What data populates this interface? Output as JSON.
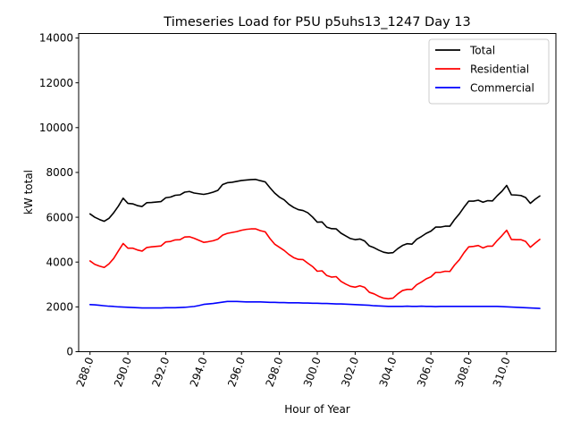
{
  "chart_data": {
    "type": "line",
    "title": "Timeseries Load for P5U p5uhs13_1247  Day 13",
    "xlabel": "Hour of Year",
    "ylabel": "kW total",
    "xlim": [
      287.4,
      312.6
    ],
    "ylim": [
      0,
      14200
    ],
    "xticks": [
      288.0,
      290.0,
      292.0,
      294.0,
      296.0,
      298.0,
      300.0,
      302.0,
      304.0,
      306.0,
      308.0,
      310.0
    ],
    "xtick_labels": [
      "288.0",
      "290.0",
      "292.0",
      "294.0",
      "296.0",
      "298.0",
      "300.0",
      "302.0",
      "304.0",
      "306.0",
      "308.0",
      "310.0"
    ],
    "yticks": [
      0,
      2000,
      4000,
      6000,
      8000,
      10000,
      12000,
      14000
    ],
    "ytick_labels": [
      "0",
      "2000",
      "4000",
      "6000",
      "8000",
      "10000",
      "12000",
      "14000"
    ],
    "legend_position": "top-right",
    "x": [
      288.0,
      288.25,
      288.5,
      288.75,
      289.0,
      289.25,
      289.5,
      289.75,
      290.0,
      290.25,
      290.5,
      290.75,
      291.0,
      291.25,
      291.5,
      291.75,
      292.0,
      292.25,
      292.5,
      292.75,
      293.0,
      293.25,
      293.5,
      293.75,
      294.0,
      294.25,
      294.5,
      294.75,
      295.0,
      295.25,
      295.5,
      295.75,
      296.0,
      296.25,
      296.5,
      296.75,
      297.0,
      297.25,
      297.5,
      297.75,
      298.0,
      298.25,
      298.5,
      298.75,
      299.0,
      299.25,
      299.5,
      299.75,
      300.0,
      300.25,
      300.5,
      300.75,
      301.0,
      301.25,
      301.5,
      301.75,
      302.0,
      302.25,
      302.5,
      302.75,
      303.0,
      303.25,
      303.5,
      303.75,
      304.0,
      304.25,
      304.5,
      304.75,
      305.0,
      305.25,
      305.5,
      305.75,
      306.0,
      306.25,
      306.5,
      306.75,
      307.0,
      307.25,
      307.5,
      307.75,
      308.0,
      308.25,
      308.5,
      308.75,
      309.0,
      309.25,
      309.5,
      309.75,
      310.0,
      310.25,
      310.5,
      310.75,
      311.0,
      311.25,
      311.5,
      311.75
    ],
    "series": [
      {
        "name": "Total",
        "color": "#000000",
        "values": [
          6150,
          6000,
          5900,
          5820,
          5950,
          6200,
          6500,
          6850,
          6620,
          6600,
          6520,
          6480,
          6650,
          6660,
          6680,
          6700,
          6870,
          6900,
          6980,
          7000,
          7120,
          7150,
          7080,
          7050,
          7020,
          7060,
          7120,
          7200,
          7460,
          7540,
          7560,
          7600,
          7640,
          7660,
          7680,
          7690,
          7630,
          7580,
          7320,
          7080,
          6900,
          6780,
          6580,
          6440,
          6340,
          6300,
          6200,
          6010,
          5780,
          5790,
          5560,
          5490,
          5480,
          5290,
          5170,
          5050,
          5000,
          5030,
          4940,
          4720,
          4640,
          4530,
          4440,
          4400,
          4420,
          4600,
          4740,
          4820,
          4800,
          5020,
          5140,
          5280,
          5380,
          5560,
          5560,
          5600,
          5600,
          5900,
          6150,
          6450,
          6720,
          6720,
          6760,
          6670,
          6740,
          6730,
          6960,
          7160,
          7420,
          7000,
          6990,
          6970,
          6880,
          6620,
          6800,
          6950
        ]
      },
      {
        "name": "Residential",
        "color": "#ff0000",
        "values": [
          4050,
          3900,
          3820,
          3760,
          3920,
          4160,
          4500,
          4830,
          4620,
          4620,
          4540,
          4490,
          4650,
          4680,
          4700,
          4720,
          4900,
          4920,
          4990,
          5000,
          5120,
          5130,
          5060,
          4970,
          4880,
          4910,
          4950,
          5020,
          5200,
          5280,
          5320,
          5360,
          5420,
          5460,
          5480,
          5480,
          5400,
          5350,
          5050,
          4800,
          4660,
          4520,
          4340,
          4200,
          4120,
          4110,
          3950,
          3800,
          3590,
          3610,
          3400,
          3330,
          3350,
          3140,
          3020,
          2920,
          2880,
          2940,
          2870,
          2650,
          2580,
          2470,
          2390,
          2360,
          2390,
          2580,
          2730,
          2780,
          2780,
          2990,
          3110,
          3250,
          3340,
          3540,
          3540,
          3590,
          3580,
          3870,
          4100,
          4420,
          4680,
          4700,
          4740,
          4630,
          4710,
          4710,
          4960,
          5180,
          5420,
          5010,
          5000,
          5000,
          4920,
          4660,
          4840,
          5010
        ]
      },
      {
        "name": "Commercial",
        "color": "#0000ff",
        "values": [
          2100,
          2090,
          2070,
          2050,
          2030,
          2020,
          2000,
          1990,
          1980,
          1970,
          1960,
          1950,
          1950,
          1950,
          1950,
          1950,
          1960,
          1960,
          1960,
          1970,
          1980,
          2000,
          2020,
          2060,
          2110,
          2130,
          2150,
          2180,
          2210,
          2240,
          2240,
          2240,
          2230,
          2220,
          2220,
          2220,
          2220,
          2210,
          2200,
          2200,
          2190,
          2190,
          2180,
          2180,
          2180,
          2170,
          2170,
          2160,
          2160,
          2150,
          2150,
          2140,
          2130,
          2130,
          2120,
          2110,
          2100,
          2090,
          2080,
          2070,
          2050,
          2040,
          2030,
          2020,
          2020,
          2020,
          2020,
          2030,
          2020,
          2020,
          2030,
          2020,
          2020,
          2010,
          2020,
          2020,
          2020,
          2020,
          2020,
          2020,
          2020,
          2020,
          2020,
          2020,
          2020,
          2020,
          2020,
          2010,
          2000,
          1990,
          1980,
          1970,
          1960,
          1950,
          1940,
          1930
        ]
      }
    ]
  }
}
